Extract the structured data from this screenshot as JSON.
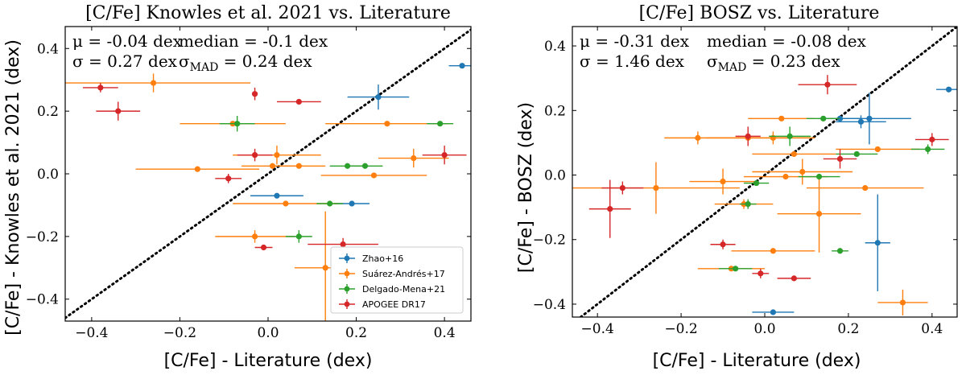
{
  "series_meta": [
    {
      "name": "Zhao+16",
      "color": "#1f77b4"
    },
    {
      "name": "Suárez-Andrés+17",
      "color": "#ff7f0e"
    },
    {
      "name": "Delgado-Mena+21",
      "color": "#2ca02c"
    },
    {
      "name": "APOGEE DR17",
      "color": "#d62728"
    }
  ],
  "chart_data": [
    {
      "type": "scatter",
      "title": "[C/Fe] Knowles et al. 2021 vs. Literature",
      "xlabel": "[C/Fe] - Literature (dex)",
      "ylabel": "[C/Fe] - Knowles et al. 2021 (dex)",
      "xlim": [
        -0.46,
        0.46
      ],
      "ylim": [
        -0.47,
        0.47
      ],
      "xticks": [
        -0.4,
        -0.2,
        0.0,
        0.2,
        0.4
      ],
      "yticks": [
        -0.4,
        -0.2,
        0.0,
        0.2,
        0.4
      ],
      "tick_labels": [
        "−0.4",
        "−0.2",
        "0.0",
        "0.2",
        "0.4"
      ],
      "stats": {
        "line1a": "μ = -0.04 dex",
        "line1b": "median = -0.1 dex",
        "line2a": "σ = 0.27 dex",
        "line2b": "σ",
        "line2b_sub": "MAD",
        "line2b_rest": " = 0.24 dex"
      },
      "legend": {
        "position": "lower-right",
        "entries": [
          "Zhao+16",
          "Suárez-Andrés+17",
          "Delgado-Mena+21",
          "APOGEE DR17"
        ]
      },
      "series": [
        {
          "name": "Zhao+16",
          "points": [
            {
              "x": 0.44,
              "y": 0.345,
              "xerr": 0.03,
              "yerr": 0.0
            },
            {
              "x": 0.25,
              "y": 0.245,
              "xerr": 0.07,
              "yerr": 0.04
            },
            {
              "x": 0.02,
              "y": -0.07,
              "xerr": 0.06,
              "yerr": 0.0
            },
            {
              "x": 0.19,
              "y": -0.095,
              "xerr": 0.04,
              "yerr": 0.0
            }
          ]
        },
        {
          "name": "Suárez-Andrés+17",
          "points": [
            {
              "x": -0.26,
              "y": 0.29,
              "xerr": 0.22,
              "yerr": 0.03
            },
            {
              "x": -0.08,
              "y": 0.16,
              "xerr": 0.12,
              "yerr": 0.0
            },
            {
              "x": 0.27,
              "y": 0.16,
              "xerr": 0.14,
              "yerr": 0.0
            },
            {
              "x": 0.02,
              "y": 0.06,
              "xerr": 0.1,
              "yerr": 0.03
            },
            {
              "x": 0.33,
              "y": 0.05,
              "xerr": 0.08,
              "yerr": 0.03
            },
            {
              "x": -0.16,
              "y": 0.015,
              "xerr": 0.14,
              "yerr": 0.0
            },
            {
              "x": 0.01,
              "y": 0.025,
              "xerr": 0.07,
              "yerr": 0.0
            },
            {
              "x": 0.07,
              "y": 0.025,
              "xerr": 0.06,
              "yerr": 0.0
            },
            {
              "x": 0.24,
              "y": -0.005,
              "xerr": 0.12,
              "yerr": 0.0
            },
            {
              "x": 0.04,
              "y": -0.095,
              "xerr": 0.12,
              "yerr": 0.0
            },
            {
              "x": -0.03,
              "y": -0.2,
              "xerr": 0.09,
              "yerr": 0.02
            },
            {
              "x": 0.13,
              "y": -0.3,
              "xerr": 0.07,
              "yerr": 0.18
            }
          ]
        },
        {
          "name": "Delgado-Mena+21",
          "points": [
            {
              "x": -0.07,
              "y": 0.16,
              "xerr": 0.04,
              "yerr": 0.025
            },
            {
              "x": 0.39,
              "y": 0.16,
              "xerr": 0.03,
              "yerr": 0.0
            },
            {
              "x": 0.18,
              "y": 0.025,
              "xerr": 0.04,
              "yerr": 0.0
            },
            {
              "x": 0.22,
              "y": 0.025,
              "xerr": 0.04,
              "yerr": 0.0
            },
            {
              "x": 0.14,
              "y": -0.095,
              "xerr": 0.03,
              "yerr": 0.0
            },
            {
              "x": 0.07,
              "y": -0.2,
              "xerr": 0.03,
              "yerr": 0.02
            }
          ]
        },
        {
          "name": "APOGEE DR17",
          "points": [
            {
              "x": -0.38,
              "y": 0.275,
              "xerr": 0.04,
              "yerr": 0.015
            },
            {
              "x": -0.03,
              "y": 0.255,
              "xerr": 0.0,
              "yerr": 0.02
            },
            {
              "x": 0.07,
              "y": 0.23,
              "xerr": 0.05,
              "yerr": 0.0
            },
            {
              "x": -0.34,
              "y": 0.2,
              "xerr": 0.05,
              "yerr": 0.03
            },
            {
              "x": -0.03,
              "y": 0.06,
              "xerr": 0.04,
              "yerr": 0.02
            },
            {
              "x": 0.4,
              "y": 0.06,
              "xerr": 0.05,
              "yerr": 0.03
            },
            {
              "x": -0.09,
              "y": -0.015,
              "xerr": 0.03,
              "yerr": 0.015
            },
            {
              "x": 0.17,
              "y": -0.225,
              "xerr": 0.08,
              "yerr": 0.02
            },
            {
              "x": -0.01,
              "y": -0.235,
              "xerr": 0.02,
              "yerr": 0.0
            }
          ]
        }
      ]
    },
    {
      "type": "scatter",
      "title": "[C/Fe] BOSZ vs. Literature",
      "xlabel": "[C/Fe] - Literature (dex)",
      "ylabel": "[C/Fe] - BOSZ (dex)",
      "xlim": [
        -0.46,
        0.46
      ],
      "ylim": [
        -0.44,
        0.46
      ],
      "xticks": [
        -0.4,
        -0.2,
        0.0,
        0.2,
        0.4
      ],
      "yticks": [
        -0.4,
        -0.2,
        0.0,
        0.2,
        0.4
      ],
      "tick_labels": [
        "−0.4",
        "−0.2",
        "0.0",
        "0.2",
        "0.4"
      ],
      "stats": {
        "line1a": "μ = -0.31 dex",
        "line1b": "median = -0.08 dex",
        "line2a": "σ = 1.46 dex",
        "line2b": "σ",
        "line2b_sub": "MAD",
        "line2b_rest": " = 0.23 dex"
      },
      "series": [
        {
          "name": "Zhao+16",
          "points": [
            {
              "x": 0.44,
              "y": 0.265,
              "xerr": 0.03,
              "yerr": 0.0
            },
            {
              "x": 0.18,
              "y": 0.175,
              "xerr": 0.05,
              "yerr": 0.0
            },
            {
              "x": 0.23,
              "y": 0.165,
              "xerr": 0.06,
              "yerr": 0.02
            },
            {
              "x": 0.25,
              "y": 0.175,
              "xerr": 0.1,
              "yerr": 0.08
            },
            {
              "x": 0.27,
              "y": -0.21,
              "xerr": 0.03,
              "yerr": 0.15
            },
            {
              "x": 0.02,
              "y": -0.425,
              "xerr": 0.05,
              "yerr": 0.0
            }
          ]
        },
        {
          "name": "Suárez-Andrés+17",
          "points": [
            {
              "x": -0.16,
              "y": 0.115,
              "xerr": 0.08,
              "yerr": 0.02
            },
            {
              "x": 0.04,
              "y": 0.175,
              "xerr": 0.08,
              "yerr": 0.0
            },
            {
              "x": -0.04,
              "y": 0.115,
              "xerr": 0.1,
              "yerr": 0.0
            },
            {
              "x": 0.02,
              "y": 0.115,
              "xerr": 0.1,
              "yerr": 0.02
            },
            {
              "x": 0.07,
              "y": 0.065,
              "xerr": 0.1,
              "yerr": 0.0
            },
            {
              "x": 0.27,
              "y": 0.08,
              "xerr": 0.1,
              "yerr": 0.0
            },
            {
              "x": 0.09,
              "y": 0.01,
              "xerr": 0.12,
              "yerr": 0.04
            },
            {
              "x": 0.05,
              "y": -0.005,
              "xerr": 0.1,
              "yerr": 0.0
            },
            {
              "x": -0.1,
              "y": -0.02,
              "xerr": 0.08,
              "yerr": 0.04
            },
            {
              "x": -0.26,
              "y": -0.04,
              "xerr": 0.2,
              "yerr": 0.08
            },
            {
              "x": 0.24,
              "y": -0.04,
              "xerr": 0.14,
              "yerr": 0.0
            },
            {
              "x": -0.05,
              "y": -0.09,
              "xerr": 0.07,
              "yerr": 0.015
            },
            {
              "x": 0.13,
              "y": -0.12,
              "xerr": 0.1,
              "yerr": 0.12
            },
            {
              "x": 0.02,
              "y": -0.235,
              "xerr": 0.1,
              "yerr": 0.0
            },
            {
              "x": -0.08,
              "y": -0.29,
              "xerr": 0.08,
              "yerr": 0.0
            },
            {
              "x": 0.33,
              "y": -0.395,
              "xerr": 0.06,
              "yerr": 0.04
            }
          ]
        },
        {
          "name": "Delgado-Mena+21",
          "points": [
            {
              "x": 0.14,
              "y": 0.175,
              "xerr": 0.04,
              "yerr": 0.0
            },
            {
              "x": 0.39,
              "y": 0.08,
              "xerr": 0.04,
              "yerr": 0.015
            },
            {
              "x": 0.06,
              "y": 0.12,
              "xerr": 0.05,
              "yerr": 0.03
            },
            {
              "x": 0.22,
              "y": 0.065,
              "xerr": 0.05,
              "yerr": 0.0
            },
            {
              "x": 0.13,
              "y": -0.005,
              "xerr": 0.05,
              "yerr": 0.0
            },
            {
              "x": -0.02,
              "y": -0.025,
              "xerr": 0.03,
              "yerr": 0.0
            },
            {
              "x": -0.04,
              "y": -0.09,
              "xerr": 0.02,
              "yerr": 0.015
            },
            {
              "x": 0.18,
              "y": -0.235,
              "xerr": 0.02,
              "yerr": 0.0
            },
            {
              "x": -0.07,
              "y": -0.29,
              "xerr": 0.04,
              "yerr": 0.0
            }
          ]
        },
        {
          "name": "APOGEE DR17",
          "points": [
            {
              "x": 0.15,
              "y": 0.28,
              "xerr": 0.07,
              "yerr": 0.03
            },
            {
              "x": -0.04,
              "y": 0.12,
              "xerr": 0.03,
              "yerr": 0.03
            },
            {
              "x": 0.18,
              "y": 0.05,
              "xerr": 0.04,
              "yerr": 0.03
            },
            {
              "x": 0.4,
              "y": 0.11,
              "xerr": 0.04,
              "yerr": 0.02
            },
            {
              "x": -0.34,
              "y": -0.04,
              "xerr": 0.05,
              "yerr": 0.02
            },
            {
              "x": -0.37,
              "y": -0.105,
              "xerr": 0.05,
              "yerr": 0.09
            },
            {
              "x": -0.1,
              "y": -0.215,
              "xerr": 0.03,
              "yerr": 0.015
            },
            {
              "x": -0.01,
              "y": -0.305,
              "xerr": 0.02,
              "yerr": 0.015
            },
            {
              "x": 0.07,
              "y": -0.32,
              "xerr": 0.04,
              "yerr": 0.0
            }
          ]
        }
      ]
    }
  ]
}
